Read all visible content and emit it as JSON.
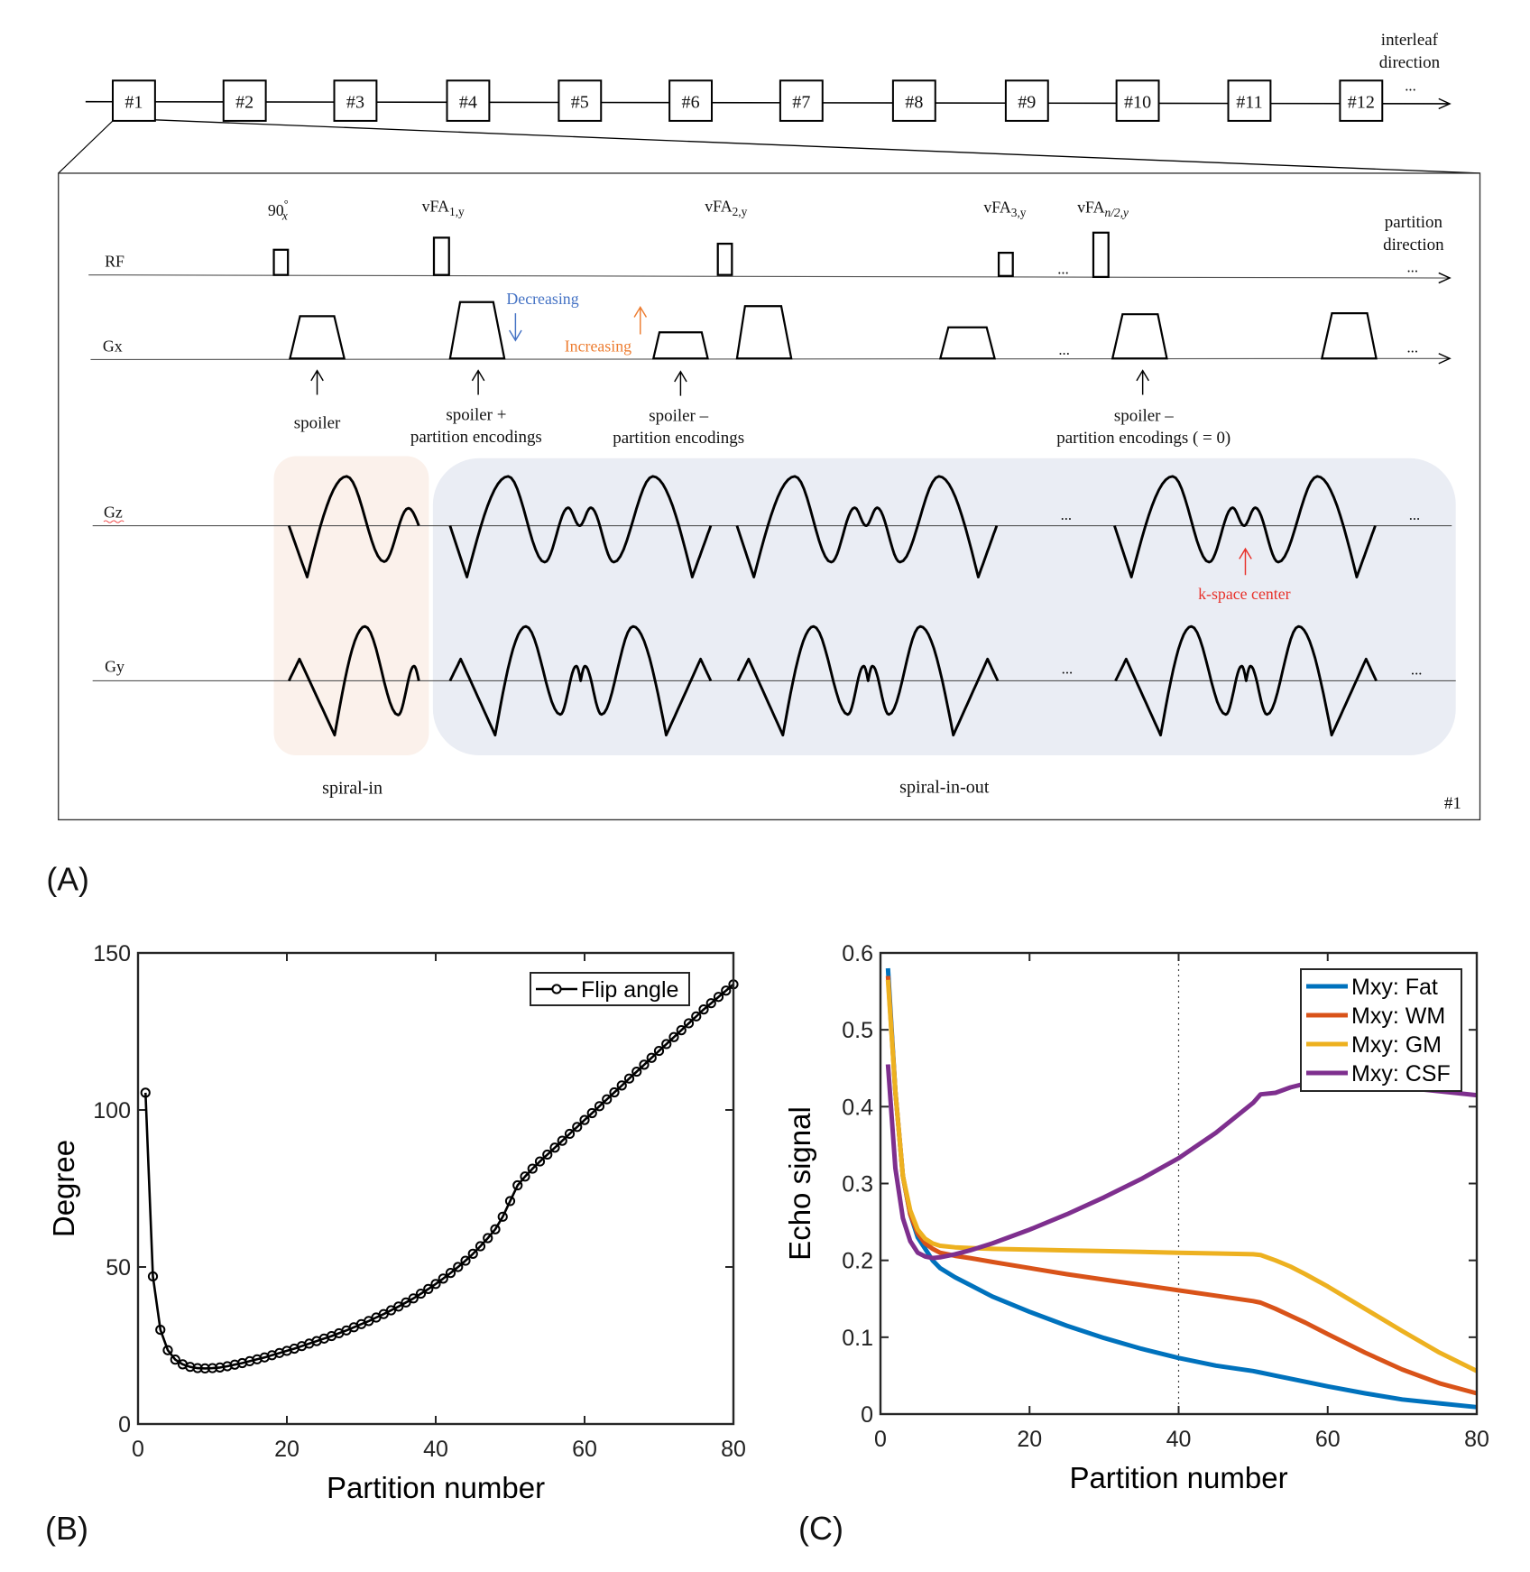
{
  "panel_a": {
    "label": "(A)",
    "interleaves": [
      "#1",
      "#2",
      "#3",
      "#4",
      "#5",
      "#6",
      "#7",
      "#8",
      "#9",
      "#10",
      "#11",
      "#12"
    ],
    "interleaf_direction": [
      "interleaf",
      "direction"
    ],
    "partition_direction": [
      "partition",
      "direction"
    ],
    "ellipsis": "...",
    "rows": {
      "rf": "RF",
      "gx": "Gx",
      "gz": "Gz",
      "gy": "Gy"
    },
    "rf_pulses": [
      {
        "base": "90",
        "sup": "°",
        "sub": "x"
      },
      {
        "base": "vFA",
        "sub": "1,y"
      },
      {
        "base": "vFA",
        "sub": "2,y"
      },
      {
        "base": "vFA",
        "sub": "3,y"
      },
      {
        "base": "vFA",
        "sub": "n/2,y"
      }
    ],
    "annotations": {
      "spoiler": "spoiler",
      "spoiler_plus": [
        "spoiler +",
        "partition encodings"
      ],
      "spoiler_minus": [
        "spoiler –",
        "partition encodings"
      ],
      "spoiler_zero": [
        "spoiler –",
        "partition encodings ( = 0)"
      ],
      "decreasing": "Decreasing",
      "increasing": "Increasing",
      "kspace_center": "k-space center"
    },
    "segments": {
      "spiral_in": "spiral-in",
      "spiral_in_out": "spiral-in-out"
    },
    "box_label": "#1",
    "colors": {
      "decreasing": "#4472C4",
      "increasing": "#ED7D31",
      "kspace": "#E8322B",
      "spiral_in_bg": "#FBF1EB",
      "spiral_in_out_bg": "#EAEDF4"
    }
  },
  "chart_data": [
    {
      "panel": "(B)",
      "type": "line",
      "xlabel": "Partition number",
      "ylabel": "Degree",
      "xlim": [
        0,
        80
      ],
      "ylim": [
        0,
        150
      ],
      "xticks": [
        0,
        20,
        40,
        60,
        80
      ],
      "yticks": [
        0,
        50,
        100,
        150
      ],
      "grid": false,
      "legend_position": "top-right",
      "series": [
        {
          "name": "Flip angle",
          "color": "#000000",
          "marker": "circle",
          "x": [
            1,
            2,
            3,
            4,
            5,
            6,
            7,
            8,
            9,
            10,
            11,
            12,
            13,
            14,
            15,
            16,
            17,
            18,
            19,
            20,
            21,
            22,
            23,
            24,
            25,
            26,
            27,
            28,
            29,
            30,
            31,
            32,
            33,
            34,
            35,
            36,
            37,
            38,
            39,
            40,
            41,
            42,
            43,
            44,
            45,
            46,
            47,
            48,
            49,
            50,
            51,
            52,
            53,
            54,
            55,
            56,
            57,
            58,
            59,
            60,
            61,
            62,
            63,
            64,
            65,
            66,
            67,
            68,
            69,
            70,
            71,
            72,
            73,
            74,
            75,
            76,
            77,
            78,
            79,
            80
          ],
          "values": [
            105.5,
            47,
            30,
            23.5,
            20.5,
            19,
            18.2,
            17.8,
            17.7,
            17.8,
            18,
            18.4,
            18.9,
            19.4,
            20,
            20.6,
            21.2,
            21.9,
            22.6,
            23.3,
            24,
            24.8,
            25.6,
            26.4,
            27.2,
            28,
            28.9,
            29.8,
            30.8,
            31.8,
            32.8,
            33.9,
            35,
            36.2,
            37.4,
            38.7,
            40,
            41.5,
            43,
            44.6,
            46.3,
            48.1,
            50,
            52,
            54.2,
            56.6,
            59.2,
            62,
            66,
            71,
            76,
            78.8,
            81.3,
            83.6,
            85.8,
            88,
            90.2,
            92.4,
            94.6,
            96.8,
            99,
            101.2,
            103.4,
            105.6,
            107.8,
            110,
            112.2,
            114.4,
            116.6,
            118.8,
            121,
            123.2,
            125.4,
            127.6,
            129.8,
            132,
            134,
            136,
            138,
            140
          ]
        }
      ]
    },
    {
      "panel": "(C)",
      "type": "line",
      "xlabel": "Partition number",
      "ylabel": "Echo signal",
      "xlim": [
        0,
        80
      ],
      "ylim": [
        0,
        0.6
      ],
      "xticks": [
        0,
        20,
        40,
        60,
        80
      ],
      "yticks": [
        0,
        0.1,
        0.2,
        0.3,
        0.4,
        0.5,
        0.6
      ],
      "grid": false,
      "legend_position": "top-right",
      "reference_line_x": 40,
      "x": [
        1,
        2,
        3,
        4,
        5,
        6,
        7,
        8,
        10,
        12,
        15,
        20,
        25,
        30,
        35,
        40,
        45,
        50,
        51,
        53,
        55,
        57,
        60,
        65,
        70,
        75,
        80
      ],
      "series": [
        {
          "name": "Mxy: Fat",
          "color": "#0072BD",
          "values": [
            0.58,
            0.42,
            0.31,
            0.26,
            0.23,
            0.215,
            0.2,
            0.19,
            0.178,
            0.168,
            0.153,
            0.133,
            0.115,
            0.099,
            0.085,
            0.073,
            0.063,
            0.056,
            0.054,
            0.05,
            0.046,
            0.042,
            0.036,
            0.027,
            0.019,
            0.014,
            0.009
          ]
        },
        {
          "name": "Mxy: WM",
          "color": "#D95319",
          "values": [
            0.57,
            0.42,
            0.31,
            0.26,
            0.235,
            0.222,
            0.215,
            0.21,
            0.206,
            0.203,
            0.198,
            0.19,
            0.182,
            0.175,
            0.168,
            0.161,
            0.154,
            0.147,
            0.145,
            0.137,
            0.128,
            0.119,
            0.104,
            0.08,
            0.058,
            0.04,
            0.027
          ]
        },
        {
          "name": "Mxy: GM",
          "color": "#EDB120",
          "values": [
            0.565,
            0.42,
            0.31,
            0.265,
            0.24,
            0.228,
            0.222,
            0.219,
            0.217,
            0.216,
            0.215,
            0.214,
            0.213,
            0.212,
            0.211,
            0.21,
            0.209,
            0.208,
            0.207,
            0.2,
            0.192,
            0.182,
            0.166,
            0.137,
            0.108,
            0.08,
            0.056
          ]
        },
        {
          "name": "Mxy: CSF",
          "color": "#7E2F8E",
          "values": [
            0.455,
            0.32,
            0.255,
            0.225,
            0.21,
            0.205,
            0.203,
            0.204,
            0.208,
            0.213,
            0.222,
            0.24,
            0.26,
            0.282,
            0.306,
            0.333,
            0.366,
            0.405,
            0.416,
            0.418,
            0.425,
            0.43,
            0.432,
            0.43,
            0.425,
            0.42,
            0.415
          ]
        }
      ]
    }
  ]
}
